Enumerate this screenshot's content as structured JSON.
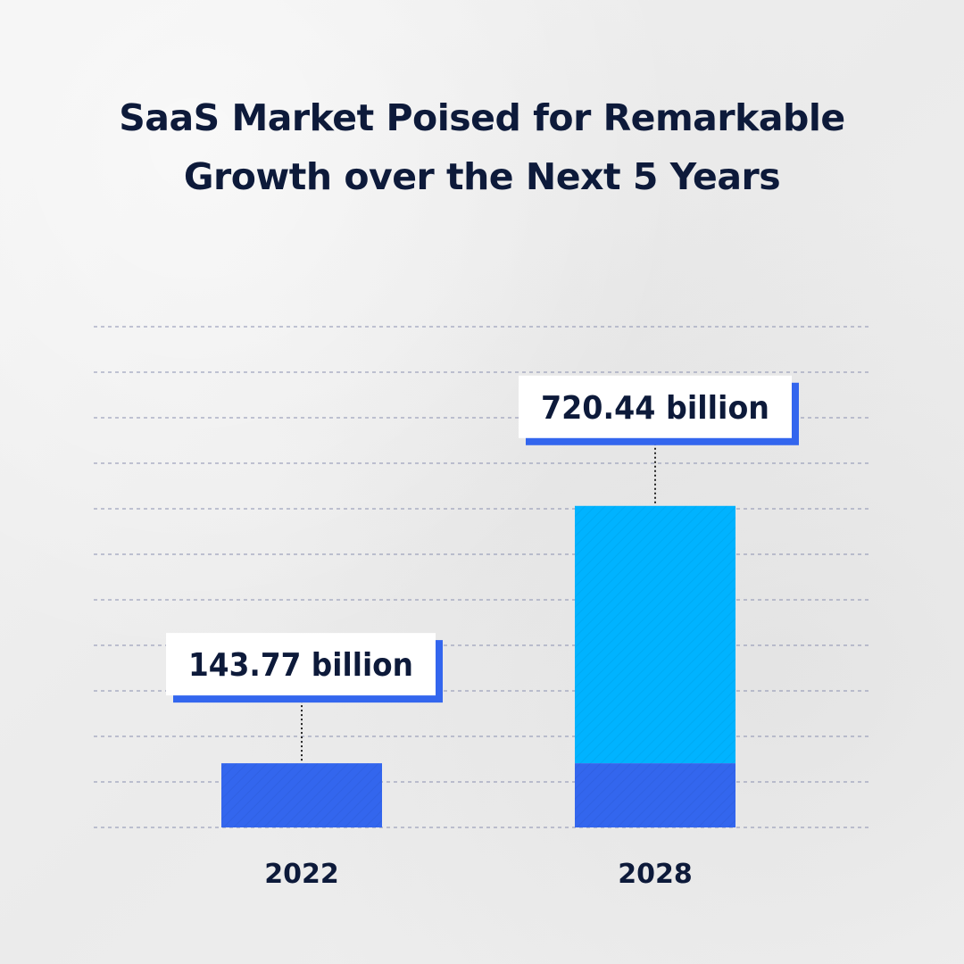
{
  "title_line1": "SaaS Market Poised for Remarkable",
  "title_line2": "Growth over the Next 5 Years",
  "colors": {
    "background": "#efefef",
    "title": "#0d1a3a",
    "bar_primary": "#3366ee",
    "bar_growth": "#00b3ff",
    "label_shadow": "#3366ee",
    "gridline": "#8a90b0"
  },
  "chart_data": {
    "type": "bar",
    "title": "SaaS Market Poised for Remarkable Growth over the Next 5 Years",
    "categories": [
      "2022",
      "2028"
    ],
    "values": [
      143.77,
      720.44
    ],
    "data_labels": [
      "143.77 billion",
      "720.44 billion"
    ],
    "xlabel": "",
    "ylabel": "",
    "ylim": [
      0,
      1100
    ],
    "grid": true,
    "legend": "none"
  }
}
